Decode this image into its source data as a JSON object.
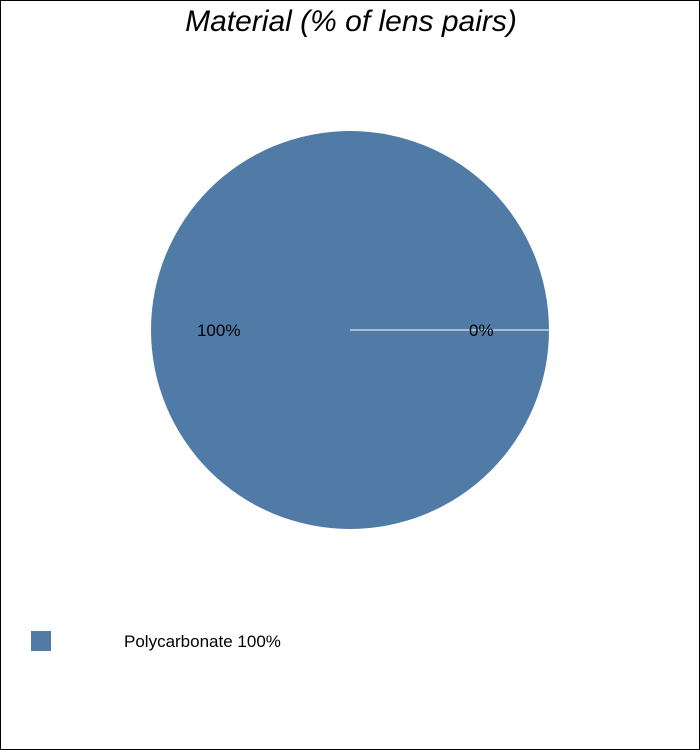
{
  "chart_data": {
    "type": "pie",
    "title": "Material (% of lens pairs)",
    "slices": [
      {
        "label": "Polycarbonate",
        "value": 100,
        "data_label": "100%",
        "color": "#4f7ba6"
      },
      {
        "label": "",
        "value": 0,
        "data_label": "0%",
        "color": "#ffffff"
      }
    ],
    "legend": {
      "placement": "bottom-left",
      "entries": [
        {
          "text": "Polycarbonate 100%",
          "color": "#4f7ba6"
        }
      ]
    }
  }
}
